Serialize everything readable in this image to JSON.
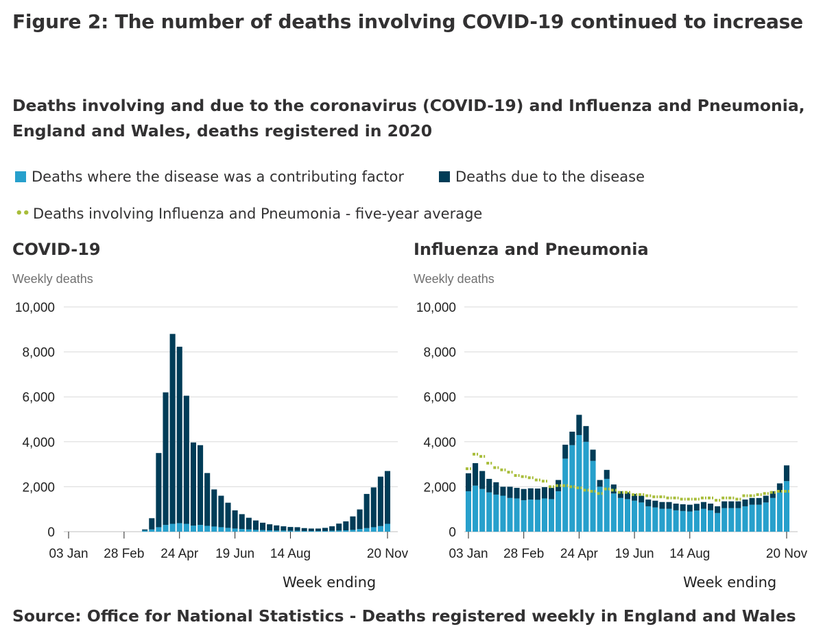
{
  "figure": {
    "title": "Figure 2: The number of deaths involving COVID-19 continued to increase",
    "subtitle": "Deaths involving and due to the coronavirus (COVID-19) and Influenza and Pneumonia, England and Wales, deaths registered in 2020",
    "source": "Source: Office for National Statistics - Deaths registered weekly in England and Wales"
  },
  "legend": {
    "contributing": "Deaths where the disease was a contributing factor",
    "due": "Deaths due to the disease",
    "average": "Deaths involving Influenza and Pneumonia - five-year average"
  },
  "colors": {
    "contributing": "#27a0cc",
    "due": "#003c57",
    "average": "#a8bd3a",
    "grid": "#d9d9d9"
  },
  "chart_data": [
    {
      "type": "bar",
      "stacked": true,
      "title": "COVID-19",
      "ylabel": "Weekly deaths",
      "xlabel": "Week ending",
      "ylim": [
        0,
        10000
      ],
      "yticks": [
        0,
        2000,
        4000,
        6000,
        8000,
        10000
      ],
      "ytick_labels": [
        "0",
        "2,000",
        "4,000",
        "6,000",
        "8,000",
        "10,000"
      ],
      "xtick_labels": [
        "03 Jan",
        "28 Feb",
        "24 Apr",
        "19 Jun",
        "14 Aug",
        "20 Nov"
      ],
      "xtick_weeks": [
        1,
        9,
        17,
        25,
        33,
        47
      ],
      "weeks": [
        1,
        2,
        3,
        4,
        5,
        6,
        7,
        8,
        9,
        10,
        11,
        12,
        13,
        14,
        15,
        16,
        17,
        18,
        19,
        20,
        21,
        22,
        23,
        24,
        25,
        26,
        27,
        28,
        29,
        30,
        31,
        32,
        33,
        34,
        35,
        36,
        37,
        38,
        39,
        40,
        41,
        42,
        43,
        44,
        45,
        46,
        47
      ],
      "series": [
        {
          "name": "Deaths where the disease was a contributing factor",
          "values": [
            0,
            0,
            0,
            0,
            0,
            0,
            0,
            0,
            0,
            0,
            0,
            50,
            100,
            200,
            300,
            350,
            380,
            350,
            270,
            300,
            260,
            230,
            200,
            170,
            140,
            120,
            100,
            80,
            70,
            60,
            50,
            50,
            40,
            40,
            30,
            30,
            30,
            30,
            40,
            50,
            60,
            80,
            120,
            160,
            200,
            250,
            350
          ]
        },
        {
          "name": "Deaths due to the disease",
          "values": [
            0,
            0,
            0,
            0,
            0,
            0,
            0,
            0,
            0,
            0,
            0,
            50,
            500,
            3300,
            5900,
            8450,
            7850,
            5700,
            3700,
            3550,
            2350,
            1650,
            1400,
            1120,
            810,
            660,
            520,
            420,
            330,
            270,
            230,
            190,
            170,
            160,
            130,
            110,
            110,
            140,
            200,
            310,
            400,
            600,
            870,
            1520,
            1770,
            2200,
            2350
          ]
        }
      ]
    },
    {
      "type": "bar",
      "stacked": true,
      "title": "Influenza and Pneumonia",
      "ylabel": "Weekly deaths",
      "xlabel": "Week ending",
      "ylim": [
        0,
        10000
      ],
      "yticks": [
        0,
        2000,
        4000,
        6000,
        8000,
        10000
      ],
      "ytick_labels": [
        "0",
        "2,000",
        "4,000",
        "6,000",
        "8,000",
        "10,000"
      ],
      "xtick_labels": [
        "03 Jan",
        "28 Feb",
        "24 Apr",
        "19 Jun",
        "14 Aug",
        "20 Nov"
      ],
      "xtick_weeks": [
        1,
        9,
        17,
        25,
        33,
        47
      ],
      "weeks": [
        1,
        2,
        3,
        4,
        5,
        6,
        7,
        8,
        9,
        10,
        11,
        12,
        13,
        14,
        15,
        16,
        17,
        18,
        19,
        20,
        21,
        22,
        23,
        24,
        25,
        26,
        27,
        28,
        29,
        30,
        31,
        32,
        33,
        34,
        35,
        36,
        37,
        38,
        39,
        40,
        41,
        42,
        43,
        44,
        45,
        46,
        47
      ],
      "series": [
        {
          "name": "Deaths where the disease was a contributing factor",
          "values": [
            1800,
            2050,
            1900,
            1750,
            1650,
            1600,
            1500,
            1480,
            1400,
            1430,
            1420,
            1480,
            1450,
            1800,
            3250,
            3850,
            4300,
            4000,
            3150,
            2000,
            2350,
            1700,
            1500,
            1450,
            1380,
            1300,
            1130,
            1080,
            1020,
            1020,
            950,
            920,
            900,
            940,
            1020,
            950,
            830,
            1050,
            1050,
            1050,
            1130,
            1200,
            1200,
            1300,
            1500,
            1750,
            2250
          ]
        },
        {
          "name": "Deaths due to the disease",
          "values": [
            800,
            1000,
            800,
            600,
            550,
            400,
            500,
            470,
            500,
            500,
            500,
            500,
            500,
            500,
            620,
            600,
            900,
            700,
            500,
            300,
            400,
            400,
            300,
            300,
            300,
            300,
            300,
            300,
            300,
            300,
            300,
            300,
            300,
            300,
            300,
            300,
            300,
            300,
            300,
            300,
            300,
            300,
            300,
            300,
            300,
            400,
            700
          ]
        },
        {
          "name": "Deaths involving Influenza and Pneumonia - five-year average",
          "type": "line",
          "values": [
            2800,
            3450,
            3350,
            3050,
            2850,
            2750,
            2650,
            2500,
            2450,
            2400,
            2300,
            2250,
            2000,
            2050,
            2050,
            2000,
            1950,
            1850,
            1800,
            1700,
            1900,
            1850,
            1750,
            1750,
            1650,
            1650,
            1600,
            1550,
            1550,
            1500,
            1500,
            1450,
            1450,
            1450,
            1500,
            1500,
            1400,
            1500,
            1500,
            1450,
            1600,
            1600,
            1650,
            1700,
            1750,
            1800,
            1800
          ]
        }
      ]
    }
  ]
}
